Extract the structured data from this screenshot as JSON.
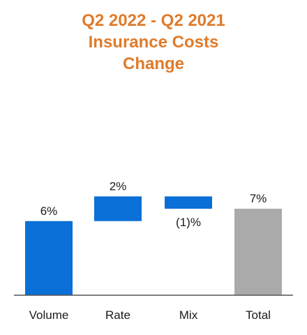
{
  "chart_data": {
    "type": "bar",
    "subtype": "waterfall",
    "title_lines": [
      "Q2 2022 - Q2 2021",
      "Insurance Costs",
      "Change"
    ],
    "categories": [
      "Volume",
      "Rate",
      "Mix",
      "Total"
    ],
    "values": [
      6,
      2,
      -1,
      7
    ],
    "data_labels": [
      "6%",
      "2%",
      "(1)%",
      "7%"
    ],
    "is_total": [
      false,
      false,
      false,
      true
    ],
    "ylim": [
      0,
      10
    ],
    "grid": false,
    "legend": "none",
    "colors": {
      "increase": "#0A6FD6",
      "decrease": "#0A6FD6",
      "total": "#AAAAAA",
      "title": "#E07B2A",
      "axis": "#555555"
    }
  }
}
